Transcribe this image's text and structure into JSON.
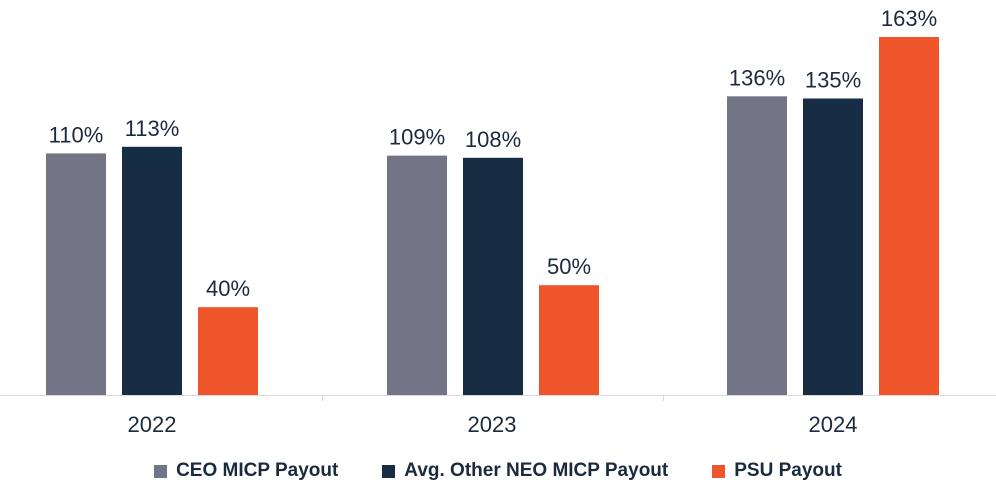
{
  "chart_data": {
    "type": "bar",
    "categories": [
      "2022",
      "2023",
      "2024"
    ],
    "series": [
      {
        "name": "CEO MICP Payout",
        "values": [
          110,
          109,
          136
        ],
        "labels": [
          "110%",
          "109%",
          "136%"
        ],
        "color": "#737587"
      },
      {
        "name": "Avg. Other NEO MICP Payout",
        "values": [
          113,
          108,
          135
        ],
        "labels": [
          "113%",
          "108%",
          "135%"
        ],
        "color": "#172d43"
      },
      {
        "name": "PSU Payout",
        "values": [
          40,
          50,
          163
        ],
        "labels": [
          "40%",
          "50%",
          "163%"
        ],
        "color": "#ef552b"
      }
    ],
    "unit": "%",
    "ylim": [
      0,
      163
    ],
    "grid": false,
    "legend_position": "bottom"
  }
}
